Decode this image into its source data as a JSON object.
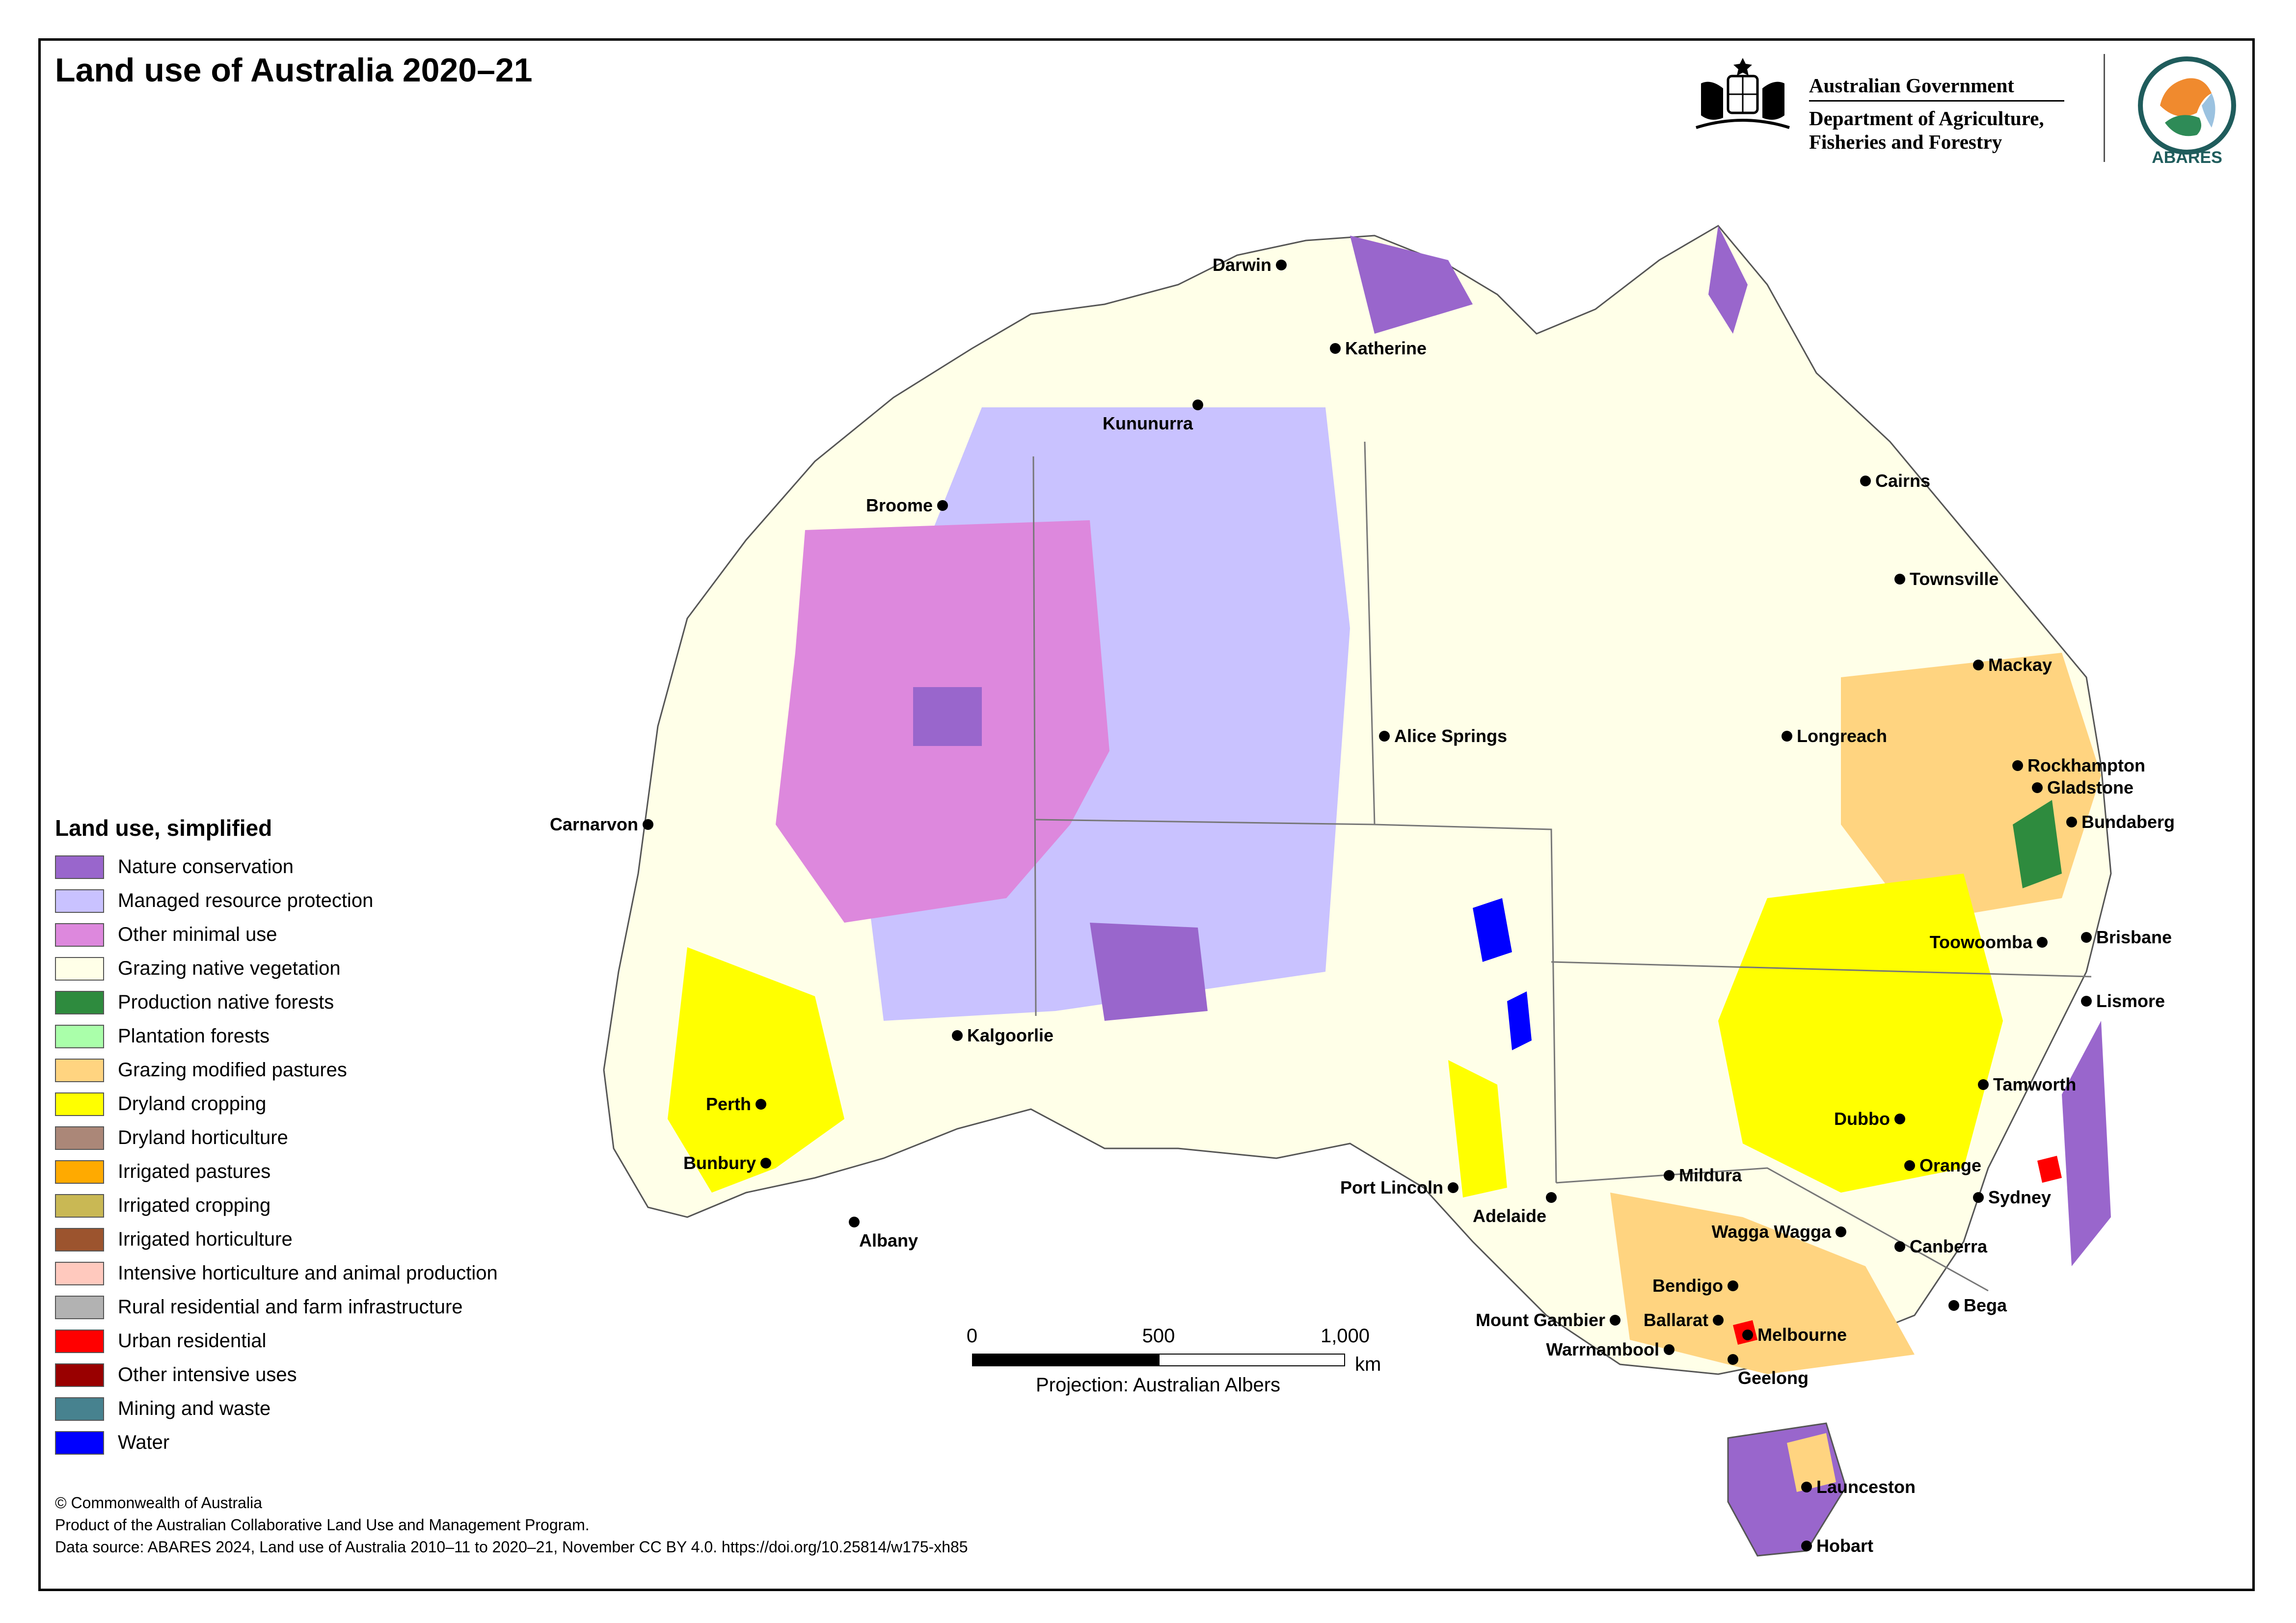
{
  "title": "Land use of Australia 2020–21",
  "header": {
    "government": "Australian Government",
    "department": "Department of Agriculture, Fisheries and Forestry",
    "agency_logo": "ABARES"
  },
  "legend": {
    "title": "Land use, simplified",
    "items": [
      {
        "label": "Nature conservation",
        "color": "#9966CC"
      },
      {
        "label": "Managed resource protection",
        "color": "#C9C2FF"
      },
      {
        "label": "Other minimal use",
        "color": "#DD88DD"
      },
      {
        "label": "Grazing native vegetation",
        "color": "#FFFFE8"
      },
      {
        "label": "Production native forests",
        "color": "#2E8B3E"
      },
      {
        "label": "Plantation forests",
        "color": "#AAFFAA"
      },
      {
        "label": "Grazing modified pastures",
        "color": "#FFD480"
      },
      {
        "label": "Dryland cropping",
        "color": "#FFFF00"
      },
      {
        "label": "Dryland horticulture",
        "color": "#AB8778"
      },
      {
        "label": "Irrigated pastures",
        "color": "#FFAA00"
      },
      {
        "label": "Irrigated cropping",
        "color": "#C9B854"
      },
      {
        "label": "Irrigated horticulture",
        "color": "#9C542E"
      },
      {
        "label": "Intensive horticulture and animal production",
        "color": "#FFC9BE"
      },
      {
        "label": "Rural residential and farm infrastructure",
        "color": "#B2B2B2"
      },
      {
        "label": "Urban residential",
        "color": "#FF0000"
      },
      {
        "label": "Other intensive uses",
        "color": "#990000"
      },
      {
        "label": "Mining and waste",
        "color": "#47828F"
      },
      {
        "label": "Water",
        "color": "#0000FF"
      }
    ]
  },
  "cities": [
    {
      "name": "Darwin"
    },
    {
      "name": "Katherine"
    },
    {
      "name": "Kununurra"
    },
    {
      "name": "Broome"
    },
    {
      "name": "Cairns"
    },
    {
      "name": "Townsville"
    },
    {
      "name": "Mackay"
    },
    {
      "name": "Alice Springs"
    },
    {
      "name": "Longreach"
    },
    {
      "name": "Rockhampton"
    },
    {
      "name": "Gladstone"
    },
    {
      "name": "Bundaberg"
    },
    {
      "name": "Carnarvon"
    },
    {
      "name": "Toowoomba"
    },
    {
      "name": "Brisbane"
    },
    {
      "name": "Lismore"
    },
    {
      "name": "Kalgoorlie"
    },
    {
      "name": "Tamworth"
    },
    {
      "name": "Perth"
    },
    {
      "name": "Dubbo"
    },
    {
      "name": "Orange"
    },
    {
      "name": "Bunbury"
    },
    {
      "name": "Mildura"
    },
    {
      "name": "Sydney"
    },
    {
      "name": "Port Lincoln"
    },
    {
      "name": "Wagga Wagga"
    },
    {
      "name": "Canberra"
    },
    {
      "name": "Albany"
    },
    {
      "name": "Adelaide"
    },
    {
      "name": "Bendigo"
    },
    {
      "name": "Bega"
    },
    {
      "name": "Ballarat"
    },
    {
      "name": "Mount Gambier"
    },
    {
      "name": "Melbourne"
    },
    {
      "name": "Warrnambool"
    },
    {
      "name": "Geelong"
    },
    {
      "name": "Launceston"
    },
    {
      "name": "Hobart"
    }
  ],
  "scale_bar": {
    "ticks": [
      "0",
      "500",
      "1,000"
    ],
    "unit": "km",
    "projection": "Projection: Australian Albers"
  },
  "footer": {
    "line1": "© Commonwealth of Australia",
    "line2": "Product of the Australian Collaborative Land Use and Management Program.",
    "line3": "Data source: ABARES 2024, Land use of Australia 2010–11 to 2020–21, November CC BY 4.0. https://doi.org/10.25814/w175-xh85"
  }
}
